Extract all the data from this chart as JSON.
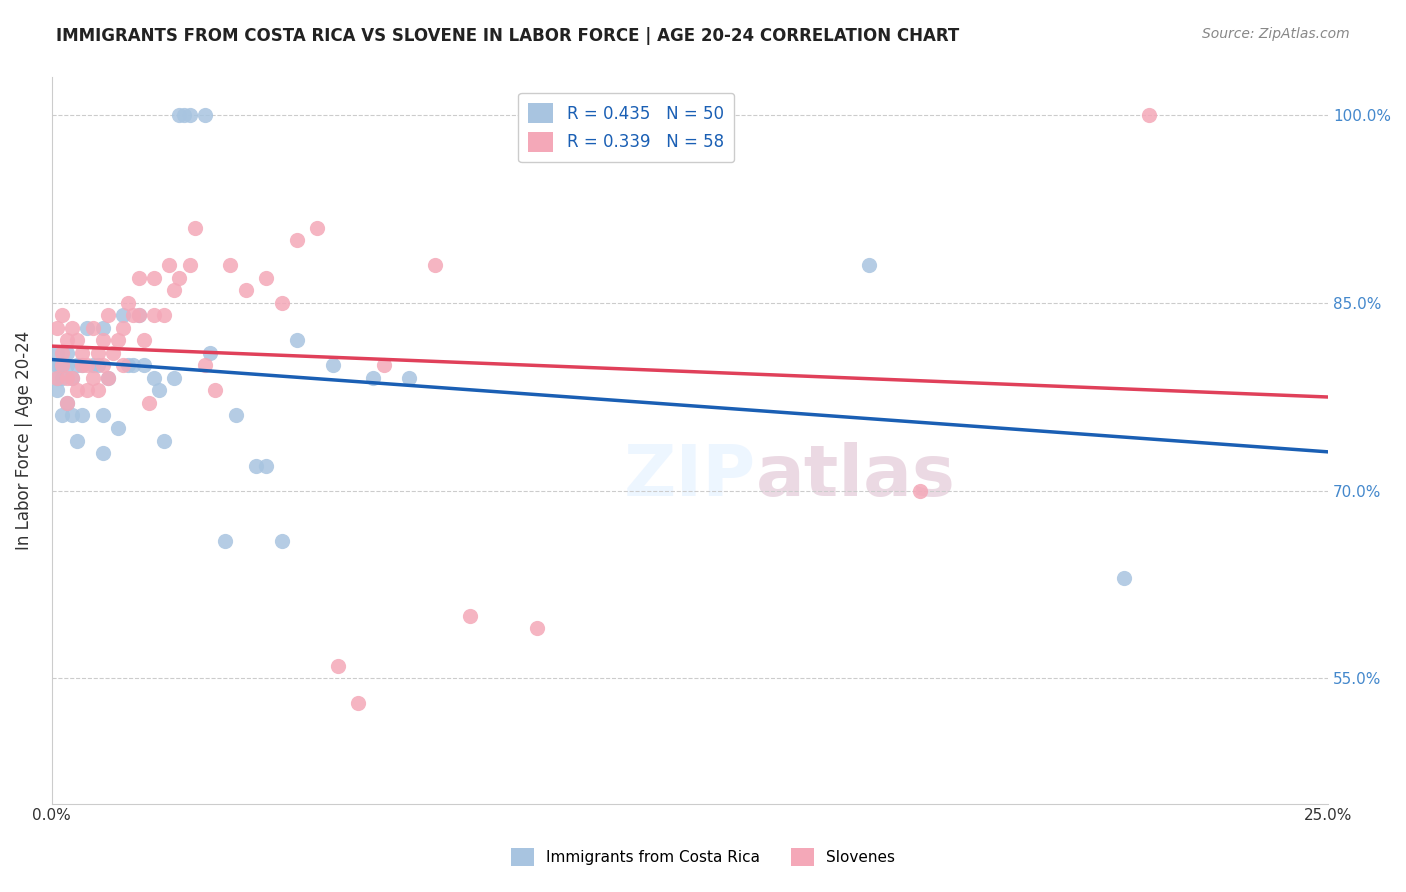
{
  "title": "IMMIGRANTS FROM COSTA RICA VS SLOVENE IN LABOR FORCE | AGE 20-24 CORRELATION CHART",
  "source": "Source: ZipAtlas.com",
  "xlabel": "",
  "ylabel": "In Labor Force | Age 20-24",
  "xlim": [
    0.0,
    0.25
  ],
  "ylim": [
    0.45,
    1.03
  ],
  "yticks": [
    0.55,
    0.7,
    0.85,
    1.0
  ],
  "ytick_labels": [
    "55.0%",
    "70.0%",
    "85.0%",
    "100.0%"
  ],
  "xticks": [
    0.0,
    0.05,
    0.1,
    0.15,
    0.2,
    0.25
  ],
  "xtick_labels": [
    "0.0%",
    "",
    "",
    "",
    "",
    "25.0%"
  ],
  "r_blue": 0.435,
  "n_blue": 50,
  "r_pink": 0.339,
  "n_pink": 58,
  "blue_color": "#a8c4e0",
  "pink_color": "#f4a8b8",
  "line_blue": "#1a5fb4",
  "line_pink": "#e0405a",
  "legend_text_color": "#1a5fb4",
  "right_axis_color": "#4488cc",
  "watermark": "ZIPatlas",
  "blue_x": [
    0.001,
    0.001,
    0.001,
    0.001,
    0.001,
    0.002,
    0.002,
    0.002,
    0.003,
    0.003,
    0.003,
    0.004,
    0.004,
    0.005,
    0.005,
    0.006,
    0.006,
    0.007,
    0.008,
    0.009,
    0.01,
    0.01,
    0.01,
    0.011,
    0.013,
    0.014,
    0.015,
    0.016,
    0.017,
    0.018,
    0.02,
    0.021,
    0.022,
    0.024,
    0.025,
    0.026,
    0.027,
    0.03,
    0.031,
    0.034,
    0.036,
    0.04,
    0.042,
    0.045,
    0.048,
    0.055,
    0.063,
    0.07,
    0.16,
    0.21
  ],
  "blue_y": [
    0.78,
    0.79,
    0.8,
    0.8,
    0.81,
    0.76,
    0.79,
    0.8,
    0.77,
    0.8,
    0.81,
    0.76,
    0.79,
    0.74,
    0.8,
    0.76,
    0.8,
    0.83,
    0.8,
    0.8,
    0.73,
    0.76,
    0.83,
    0.79,
    0.75,
    0.84,
    0.8,
    0.8,
    0.84,
    0.8,
    0.79,
    0.78,
    0.74,
    0.79,
    1.0,
    1.0,
    1.0,
    1.0,
    0.81,
    0.66,
    0.76,
    0.72,
    0.72,
    0.66,
    0.82,
    0.8,
    0.79,
    0.79,
    0.88,
    0.63
  ],
  "pink_x": [
    0.001,
    0.001,
    0.002,
    0.002,
    0.002,
    0.003,
    0.003,
    0.003,
    0.004,
    0.004,
    0.005,
    0.005,
    0.006,
    0.006,
    0.007,
    0.007,
    0.008,
    0.008,
    0.009,
    0.009,
    0.01,
    0.01,
    0.011,
    0.011,
    0.012,
    0.013,
    0.014,
    0.014,
    0.015,
    0.016,
    0.017,
    0.017,
    0.018,
    0.019,
    0.02,
    0.02,
    0.022,
    0.023,
    0.024,
    0.025,
    0.027,
    0.028,
    0.03,
    0.032,
    0.035,
    0.038,
    0.042,
    0.045,
    0.048,
    0.052,
    0.056,
    0.06,
    0.065,
    0.075,
    0.082,
    0.095,
    0.17,
    0.215
  ],
  "pink_y": [
    0.79,
    0.83,
    0.8,
    0.81,
    0.84,
    0.77,
    0.79,
    0.82,
    0.79,
    0.83,
    0.78,
    0.82,
    0.8,
    0.81,
    0.78,
    0.8,
    0.79,
    0.83,
    0.78,
    0.81,
    0.8,
    0.82,
    0.79,
    0.84,
    0.81,
    0.82,
    0.8,
    0.83,
    0.85,
    0.84,
    0.84,
    0.87,
    0.82,
    0.77,
    0.84,
    0.87,
    0.84,
    0.88,
    0.86,
    0.87,
    0.88,
    0.91,
    0.8,
    0.78,
    0.88,
    0.86,
    0.87,
    0.85,
    0.9,
    0.91,
    0.56,
    0.53,
    0.8,
    0.88,
    0.6,
    0.59,
    0.7,
    1.0
  ]
}
